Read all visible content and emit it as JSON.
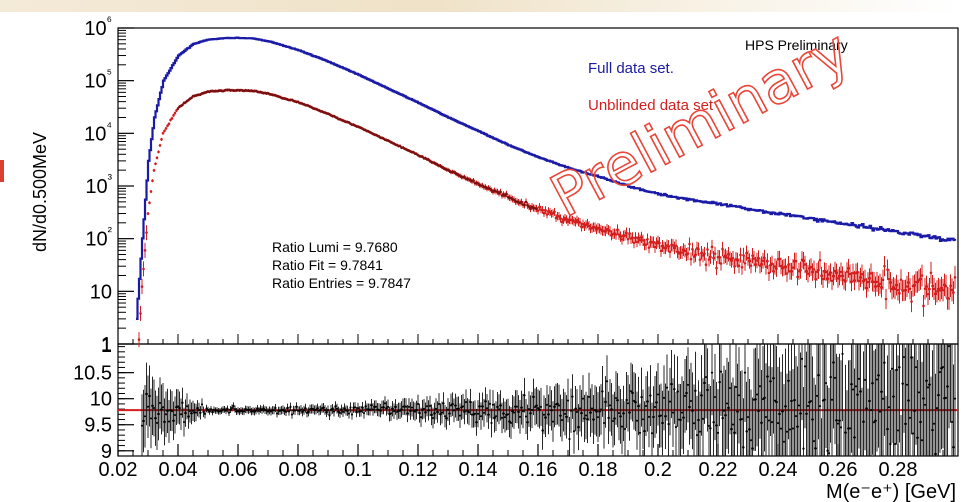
{
  "chart_data": [
    {
      "type": "line",
      "panel": "main",
      "ylabel": "dN/d0.500MeV",
      "yscale": "log",
      "ylim": [
        1,
        1000000
      ],
      "xlim": [
        0.02,
        0.3
      ],
      "y_tick_labels": [
        "1",
        "10",
        "10²",
        "10³",
        "10⁴",
        "10⁵",
        "10⁶"
      ],
      "header": "HPS Preliminary",
      "watermark": "Preliminary",
      "annotations": [
        "Ratio Lumi = 9.7680",
        "Ratio Fit = 9.7841",
        "Ratio Entries = 9.7847"
      ],
      "series": [
        {
          "name": "Full data set.",
          "color": "#1a1aa6",
          "x": [
            0.026,
            0.028,
            0.03,
            0.032,
            0.035,
            0.04,
            0.045,
            0.05,
            0.055,
            0.06,
            0.065,
            0.07,
            0.08,
            0.09,
            0.1,
            0.11,
            0.12,
            0.13,
            0.14,
            0.15,
            0.16,
            0.17,
            0.18,
            0.19,
            0.2,
            0.22,
            0.24,
            0.26,
            0.28,
            0.3
          ],
          "y": [
            3,
            100,
            3000,
            20000,
            100000,
            300000,
            500000,
            600000,
            640000,
            650000,
            630000,
            560000,
            380000,
            230000,
            130000,
            70000,
            38000,
            20000,
            11000,
            6000,
            3500,
            2200,
            1500,
            1000,
            700,
            450,
            300,
            200,
            135,
            90
          ]
        },
        {
          "name": "Unblinded data set",
          "color": "#d41e1e",
          "x": [
            0.027,
            0.028,
            0.03,
            0.032,
            0.035,
            0.04,
            0.045,
            0.05,
            0.055,
            0.06,
            0.065,
            0.07,
            0.08,
            0.09,
            0.1,
            0.11,
            0.12,
            0.13,
            0.14,
            0.15,
            0.16,
            0.17,
            0.18,
            0.19,
            0.2,
            0.22,
            0.24,
            0.26,
            0.28,
            0.3
          ],
          "y": [
            1.2,
            12,
            300,
            2000,
            10000,
            30000,
            50000,
            62000,
            65000,
            66000,
            64000,
            57000,
            39000,
            23500,
            13300,
            7200,
            3900,
            2000,
            1100,
            620,
            360,
            230,
            155,
            100,
            72,
            46,
            31,
            21,
            14,
            9
          ]
        }
      ]
    },
    {
      "type": "scatter",
      "panel": "ratio",
      "xlabel": "M(e⁻e⁺) [GeV]",
      "xlim": [
        0.02,
        0.3
      ],
      "ylim": [
        8.9,
        11.05
      ],
      "x_tick_labels": [
        "0.02",
        "0.04",
        "0.06",
        "0.08",
        "0.1",
        "0.12",
        "0.14",
        "0.16",
        "0.18",
        "0.2",
        "0.22",
        "0.24",
        "0.26",
        "0.28"
      ],
      "y_tick_labels": [
        "9",
        "9.5",
        "10",
        "10.5"
      ],
      "reference_line": {
        "y": 9.78,
        "color": "#d41e1e"
      },
      "ratio_center": 9.78,
      "error_scale": {
        "x": [
          0.03,
          0.05,
          0.1,
          0.15,
          0.2,
          0.25,
          0.3
        ],
        "err": [
          0.6,
          0.06,
          0.1,
          0.3,
          0.6,
          1.2,
          1.6
        ]
      }
    }
  ],
  "legend": [
    {
      "label": "Full data set.",
      "color": "#1a1aa6"
    },
    {
      "label": "Unblinded data set",
      "color": "#d41e1e"
    }
  ]
}
